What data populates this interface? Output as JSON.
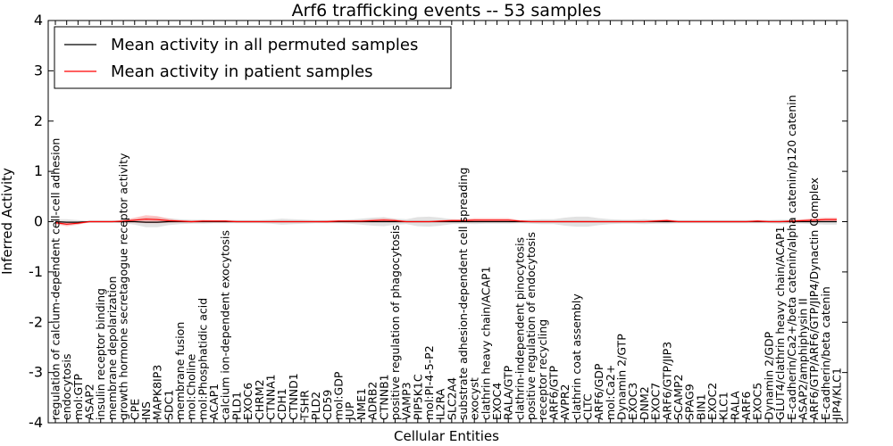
{
  "chart_data": {
    "type": "line",
    "title": "Arf6 trafficking events -- 53 samples",
    "xlabel": "Cellular Entities",
    "ylabel": "Inferred Activity",
    "ylim": [
      -4,
      4
    ],
    "yticks": [
      -4,
      -3,
      -2,
      -1,
      0,
      1,
      2,
      3,
      4
    ],
    "legend_position": "top-left",
    "colors": {
      "permuted": "#000000",
      "patient": "#ff0000",
      "permuted_band": "#bfbfbf",
      "patient_band": "#ff9999"
    },
    "categories": [
      "regulation of calcium-dependent cell-cell adhesion",
      "endocytosis",
      "mol:GTP",
      "ASAP2",
      "insulin receptor binding",
      "membrane depolarization",
      "growth hormone secretagogue receptor activity",
      "CPE",
      "INS",
      "MAPK8IP3",
      "SDC1",
      "membrane fusion",
      "mol:Choline",
      "mol:Phosphatidic acid",
      "ACAP1",
      "calcium ion-dependent exocytosis",
      "PLD1",
      "EXOC6",
      "CHRM2",
      "CTNNA1",
      "CDH1",
      "CTNND1",
      "TSHR",
      "PLD2",
      "CD59",
      "mol:GDP",
      "JUP",
      "NME1",
      "ADRB2",
      "CTNNB1",
      "positive regulation of phagocytosis",
      "VAMP3",
      "PIP5K1C",
      "mol:PI-4-5-P2",
      "IL2RA",
      "SLC2A4",
      "substrate adhesion-dependent cell spreading",
      "exocyst",
      "clathrin heavy chain/ACAP1",
      "EXOC4",
      "RALA/GTP",
      "clathrin-independent pinocytosis",
      "positive regulation of endocytosis",
      "receptor recycling",
      "ARF6/GTP",
      "AVPR2",
      "clathrin coat assembly",
      "CLTC",
      "ARF6/GDP",
      "mol:Ca2+",
      "Dynamin 2/GTP",
      "EXOC3",
      "DNM2",
      "EXOC7",
      "ARF6/GTP/JIP3",
      "SCAMP2",
      "SPAG9",
      "BIN1",
      "EXOC2",
      "KLC1",
      "RALA",
      "ARF6",
      "EXOC5",
      "Dynamin 2/GDP",
      "GLUT4/clathrin heavy chain/ACAP1",
      "E-cadherin/Ca2+/beta catenin/alpha catenin/p120 catenin",
      "ASAP2/amphiphysin II",
      "ARF6/GTP/ARF6/GTP/JIP4/Dynactin Complex",
      "E-cadherin/beta catenin",
      "JIP4/KLC1"
    ],
    "series": [
      {
        "name": "Mean activity in all permuted samples",
        "values": [
          0.0,
          -0.01,
          -0.01,
          0.0,
          0.0,
          0.0,
          0.0,
          0.0,
          -0.01,
          -0.01,
          0.0,
          0.0,
          0.0,
          0.0,
          0.0,
          0.0,
          0.0,
          0.0,
          0.0,
          0.0,
          0.0,
          0.0,
          0.0,
          0.0,
          0.0,
          0.0,
          0.0,
          0.0,
          0.0,
          0.0,
          0.0,
          0.0,
          0.0,
          0.0,
          0.0,
          0.0,
          0.0,
          0.0,
          0.0,
          0.0,
          0.0,
          0.0,
          0.0,
          0.0,
          0.0,
          0.0,
          0.0,
          0.0,
          0.0,
          0.0,
          0.0,
          0.0,
          0.0,
          0.0,
          0.0,
          0.0,
          0.0,
          0.0,
          0.0,
          0.0,
          0.0,
          0.0,
          0.0,
          0.0,
          0.0,
          0.0,
          0.0,
          0.0,
          0.0,
          0.0
        ],
        "band": [
          0.05,
          0.06,
          0.04,
          0.02,
          0.02,
          0.02,
          0.03,
          0.06,
          0.1,
          0.1,
          0.07,
          0.05,
          0.04,
          0.04,
          0.03,
          0.03,
          0.03,
          0.03,
          0.03,
          0.04,
          0.06,
          0.05,
          0.04,
          0.03,
          0.03,
          0.03,
          0.04,
          0.06,
          0.08,
          0.09,
          0.06,
          0.05,
          0.09,
          0.1,
          0.08,
          0.05,
          0.04,
          0.05,
          0.04,
          0.04,
          0.04,
          0.03,
          0.04,
          0.05,
          0.05,
          0.08,
          0.1,
          0.1,
          0.07,
          0.05,
          0.04,
          0.04,
          0.05,
          0.04,
          0.04,
          0.03,
          0.03,
          0.03,
          0.03,
          0.03,
          0.03,
          0.03,
          0.03,
          0.03,
          0.04,
          0.04,
          0.04,
          0.05,
          0.06,
          0.06
        ]
      },
      {
        "name": "Mean activity in patient samples",
        "values": [
          -0.02,
          -0.05,
          -0.03,
          0.0,
          0.0,
          0.0,
          0.01,
          0.03,
          0.05,
          0.04,
          0.02,
          0.01,
          0.0,
          0.01,
          0.01,
          0.01,
          0.0,
          0.0,
          0.0,
          0.0,
          0.0,
          0.0,
          0.0,
          0.0,
          0.0,
          0.01,
          0.01,
          0.01,
          0.02,
          0.03,
          0.02,
          0.0,
          0.0,
          0.0,
          0.01,
          0.02,
          0.02,
          0.03,
          0.03,
          0.03,
          0.03,
          0.01,
          0.0,
          0.0,
          0.0,
          0.0,
          0.0,
          0.0,
          0.0,
          0.0,
          0.0,
          0.0,
          0.0,
          0.01,
          0.02,
          0.0,
          0.0,
          0.0,
          0.0,
          0.0,
          0.0,
          0.0,
          0.01,
          0.0,
          0.0,
          0.01,
          0.02,
          0.03,
          0.04,
          0.04
        ],
        "band": [
          0.03,
          0.04,
          0.03,
          0.01,
          0.01,
          0.01,
          0.02,
          0.05,
          0.08,
          0.07,
          0.04,
          0.02,
          0.02,
          0.02,
          0.02,
          0.02,
          0.01,
          0.01,
          0.01,
          0.01,
          0.01,
          0.01,
          0.01,
          0.01,
          0.02,
          0.02,
          0.02,
          0.02,
          0.03,
          0.04,
          0.03,
          0.01,
          0.01,
          0.01,
          0.02,
          0.03,
          0.03,
          0.04,
          0.04,
          0.04,
          0.04,
          0.02,
          0.01,
          0.01,
          0.01,
          0.01,
          0.01,
          0.01,
          0.01,
          0.01,
          0.01,
          0.01,
          0.01,
          0.02,
          0.03,
          0.01,
          0.01,
          0.01,
          0.01,
          0.01,
          0.01,
          0.01,
          0.02,
          0.01,
          0.01,
          0.02,
          0.03,
          0.04,
          0.04,
          0.04
        ]
      }
    ]
  }
}
